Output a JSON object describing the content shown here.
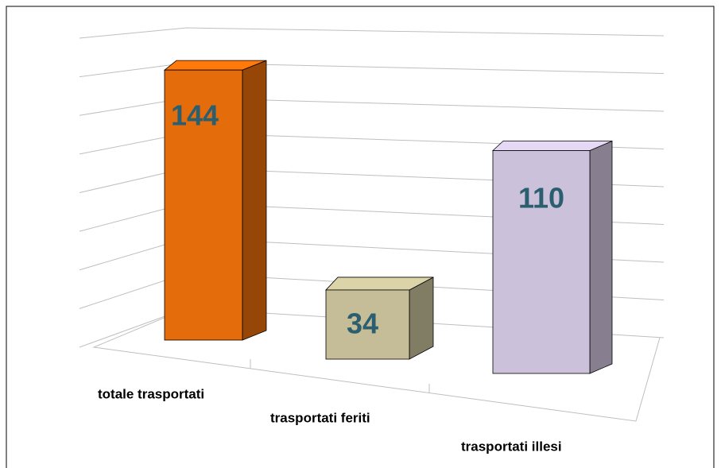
{
  "chart_data": {
    "type": "bar3d",
    "categories": [
      "totale trasportati",
      "trasportati feriti",
      "trasportati illesi"
    ],
    "values": [
      144,
      34,
      110
    ],
    "colors": [
      "#e46c0a",
      "#c4bd97",
      "#ccc1da"
    ],
    "ylim": [
      0,
      160
    ],
    "yticks": [
      0,
      20,
      40,
      60,
      80,
      100,
      120,
      140,
      160
    ],
    "grid": true
  }
}
